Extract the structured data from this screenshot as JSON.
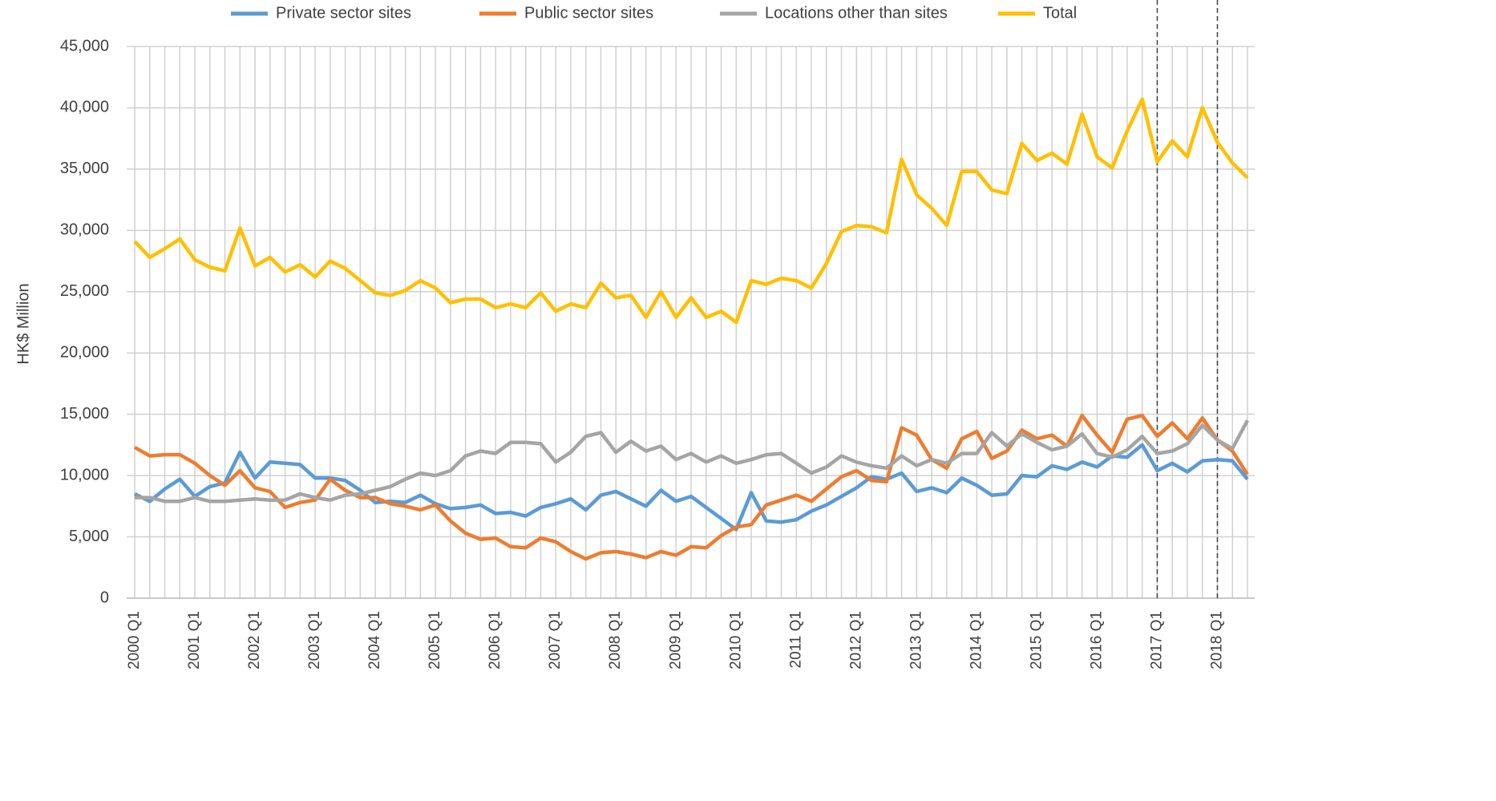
{
  "chart_data": {
    "type": "line",
    "y_label": "HK$ Million",
    "categories": [
      "2000 Q1",
      null,
      null,
      null,
      "2001 Q1",
      null,
      null,
      null,
      "2002 Q1",
      null,
      null,
      null,
      "2003 Q1",
      null,
      null,
      null,
      "2004 Q1",
      null,
      null,
      null,
      "2005 Q1",
      null,
      null,
      null,
      "2006 Q1",
      null,
      null,
      null,
      "2007 Q1",
      null,
      null,
      null,
      "2008 Q1",
      null,
      null,
      null,
      "2009 Q1",
      null,
      null,
      null,
      "2010 Q1",
      null,
      null,
      null,
      "2011 Q1",
      null,
      null,
      null,
      "2012 Q1",
      null,
      null,
      null,
      "2013 Q1",
      null,
      null,
      null,
      "2014 Q1",
      null,
      null,
      null,
      "2015 Q1",
      null,
      null,
      null,
      "2016 Q1",
      null,
      null,
      null,
      "2017 Q1",
      null,
      null,
      null,
      "2018 Q1",
      null,
      null
    ],
    "series": [
      {
        "name": "Private sector sites",
        "color": "#5b9bd5",
        "values": [
          8500,
          7900,
          8900,
          9700,
          8300,
          9100,
          9400,
          11900,
          9800,
          11100,
          11000,
          10900,
          9800,
          9800,
          9600,
          8800,
          7800,
          7900,
          7800,
          8400,
          7700,
          7300,
          7400,
          7600,
          6900,
          7000,
          6700,
          7400,
          7700,
          8100,
          7200,
          8400,
          8700,
          8100,
          7500,
          8800,
          7900,
          8300,
          7400,
          6500,
          5600,
          8600,
          6300,
          6200,
          6400,
          7100,
          7600,
          8300,
          9000,
          9900,
          9700,
          10200,
          8700,
          9000,
          8600,
          9800,
          9200,
          8400,
          8500,
          10000,
          9900,
          10800,
          10500,
          11100,
          10700,
          11600,
          11500,
          12500,
          10400,
          11000,
          10300,
          11200,
          11300,
          11200,
          9700
        ]
      },
      {
        "name": "Public sector sites",
        "color": "#ed7d31",
        "values": [
          12300,
          11600,
          11700,
          11700,
          11000,
          10000,
          9200,
          10400,
          9000,
          8700,
          7400,
          7800,
          8000,
          9700,
          8800,
          8200,
          8200,
          7700,
          7500,
          7200,
          7600,
          6300,
          5300,
          4800,
          4900,
          4200,
          4100,
          4900,
          4600,
          3800,
          3200,
          3700,
          3800,
          3600,
          3300,
          3800,
          3500,
          4200,
          4100,
          5100,
          5800,
          6000,
          7600,
          8000,
          8400,
          7900,
          8900,
          9900,
          10400,
          9600,
          9500,
          13900,
          13300,
          11300,
          10600,
          13000,
          13600,
          11400,
          12000,
          13700,
          13000,
          13300,
          12400,
          14900,
          13300,
          11900,
          14600,
          14900,
          13200,
          14300,
          13000,
          14700,
          12900,
          12000,
          10100
        ]
      },
      {
        "name": "Locations other than sites",
        "color": "#a5a5a5",
        "values": [
          8200,
          8200,
          7900,
          7900,
          8200,
          7900,
          7900,
          8000,
          8100,
          8000,
          8000,
          8500,
          8200,
          8000,
          8400,
          8500,
          8800,
          9100,
          9700,
          10200,
          10000,
          10400,
          11600,
          12000,
          11800,
          12700,
          12700,
          12600,
          11100,
          11900,
          13200,
          13500,
          11900,
          12800,
          12000,
          12400,
          11300,
          11800,
          11100,
          11600,
          11000,
          11300,
          11700,
          11800,
          11000,
          10200,
          10700,
          11600,
          11100,
          10800,
          10600,
          11600,
          10800,
          11300,
          11000,
          11800,
          11800,
          13500,
          12400,
          13400,
          12700,
          12100,
          12400,
          13400,
          11800,
          11500,
          12100,
          13200,
          11800,
          12000,
          12600,
          14100,
          12900,
          12200,
          14500
        ]
      },
      {
        "name": "Total",
        "color": "#ffc000",
        "values": [
          29100,
          27800,
          28500,
          29300,
          27600,
          27000,
          26700,
          30200,
          27100,
          27800,
          26600,
          27200,
          26200,
          27500,
          26900,
          25900,
          24900,
          24700,
          25100,
          25900,
          25300,
          24100,
          24400,
          24400,
          23700,
          24000,
          23700,
          24900,
          23400,
          24000,
          23700,
          25700,
          24500,
          24700,
          22900,
          25000,
          22900,
          24500,
          22900,
          23400,
          22500,
          25900,
          25600,
          26100,
          25900,
          25300,
          27300,
          29900,
          30400,
          30300,
          29800,
          35800,
          32900,
          31800,
          30400,
          34800,
          34800,
          33300,
          33000,
          37100,
          35700,
          36300,
          35400,
          39500,
          36000,
          35100,
          38100,
          40700,
          35600,
          37300,
          36000,
          40000,
          37200,
          35500,
          34300
        ]
      }
    ],
    "ylim": [
      0,
      45000
    ],
    "yticks": [
      0,
      {
        "value": 5000,
        "label": "5,000"
      },
      {
        "value": 10000,
        "label": "10,000"
      },
      {
        "value": 15000,
        "label": "15,000"
      },
      {
        "value": 20000,
        "label": "20,000"
      },
      {
        "value": 25000,
        "label": "25,000"
      },
      {
        "value": 30000,
        "label": "30,000"
      },
      {
        "value": 35000,
        "label": "35,000"
      },
      {
        "value": 40000,
        "label": "40,000"
      },
      {
        "value": 45000,
        "label": "45,000"
      }
    ],
    "grid": true,
    "legend": "top",
    "dashed_lines_at": [
      "2017 Q1",
      "2018 Q1"
    ]
  }
}
